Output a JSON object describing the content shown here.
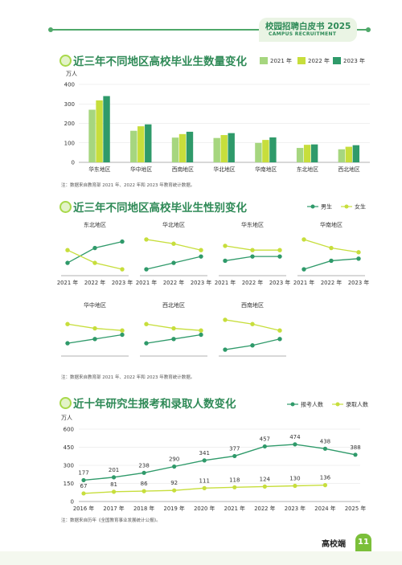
{
  "header": {
    "brand_cn": "校园招聘白皮书 2025",
    "brand_en": "CAMPUS RECRUITMENT"
  },
  "footer": {
    "label": "高校端",
    "page": "11"
  },
  "colors": {
    "c2021": "#a6d67f",
    "c2022": "#c7de3c",
    "c2023": "#2f9a6a",
    "male": "#2f9a6a",
    "female": "#c7de3c",
    "title": "#2f8a57"
  },
  "chart_data": [
    {
      "type": "bar",
      "title": "近三年不同地区高校毕业生数量变化",
      "ylabel": "万人",
      "ylim": [
        0,
        400
      ],
      "yticks": [
        0,
        100,
        200,
        300,
        400
      ],
      "categories": [
        "华东地区",
        "华中地区",
        "西南地区",
        "华北地区",
        "华南地区",
        "东北地区",
        "西北地区"
      ],
      "series": [
        {
          "name": "2021 年",
          "values": [
            270,
            162,
            127,
            125,
            100,
            74,
            67
          ]
        },
        {
          "name": "2022 年",
          "values": [
            318,
            185,
            145,
            140,
            115,
            90,
            80
          ]
        },
        {
          "name": "2023 年",
          "values": [
            340,
            195,
            157,
            150,
            128,
            92,
            88
          ]
        }
      ],
      "legend": "top-right",
      "note": "注：数据来自教育部 2021 年、2022 年和 2023 年教育统计数据。"
    },
    {
      "type": "line",
      "title": "近三年不同地区高校毕业生性别变化",
      "legend": "top-right",
      "legend_entries": [
        "男生",
        "女生"
      ],
      "x": [
        "2021 年",
        "2022 年",
        "2023 年"
      ],
      "panels": [
        {
          "region": "东北地区",
          "male": [
            3.0,
            6.5,
            8.0
          ],
          "female": [
            6.0,
            3.0,
            1.5
          ]
        },
        {
          "region": "华北地区",
          "male": [
            1.5,
            3.0,
            4.5
          ],
          "female": [
            8.5,
            7.5,
            6.0
          ]
        },
        {
          "region": "华东地区",
          "male": [
            3.5,
            4.5,
            4.5
          ],
          "female": [
            7.0,
            6.0,
            6.0
          ]
        },
        {
          "region": "华南地区",
          "male": [
            1.5,
            3.5,
            4.0
          ],
          "female": [
            8.5,
            6.5,
            5.5
          ]
        },
        {
          "region": "华中地区",
          "male": [
            3.0,
            4.0,
            5.0
          ],
          "female": [
            7.5,
            6.5,
            6.0
          ]
        },
        {
          "region": "西北地区",
          "male": [
            3.0,
            4.0,
            5.0
          ],
          "female": [
            7.5,
            6.5,
            6.0
          ]
        },
        {
          "region": "西南地区",
          "male": [
            1.5,
            2.5,
            4.0
          ],
          "female": [
            8.5,
            7.5,
            6.0
          ]
        }
      ],
      "note": "注：数据来自教育部 2021 年、2022 年和 2023 年教育统计数据。"
    },
    {
      "type": "line",
      "title": "近十年研究生报考和录取人数变化",
      "ylabel": "万人",
      "ylim": [
        0,
        600
      ],
      "yticks": [
        0,
        150,
        300,
        450,
        600
      ],
      "x": [
        "2016 年",
        "2017 年",
        "2018 年",
        "2019 年",
        "2020 年",
        "2021 年",
        "2022 年",
        "2023 年",
        "2024 年",
        "2025 年"
      ],
      "series": [
        {
          "name": "报考人数",
          "values": [
            177,
            201,
            238,
            290,
            341,
            377,
            457,
            474,
            438,
            388
          ]
        },
        {
          "name": "录取人数",
          "values": [
            67,
            81,
            86,
            92,
            111,
            118,
            124,
            130,
            136,
            null
          ]
        }
      ],
      "legend": "top-right",
      "note": "注：数据来自历年《全国教育事业发展统计公报》。"
    }
  ]
}
